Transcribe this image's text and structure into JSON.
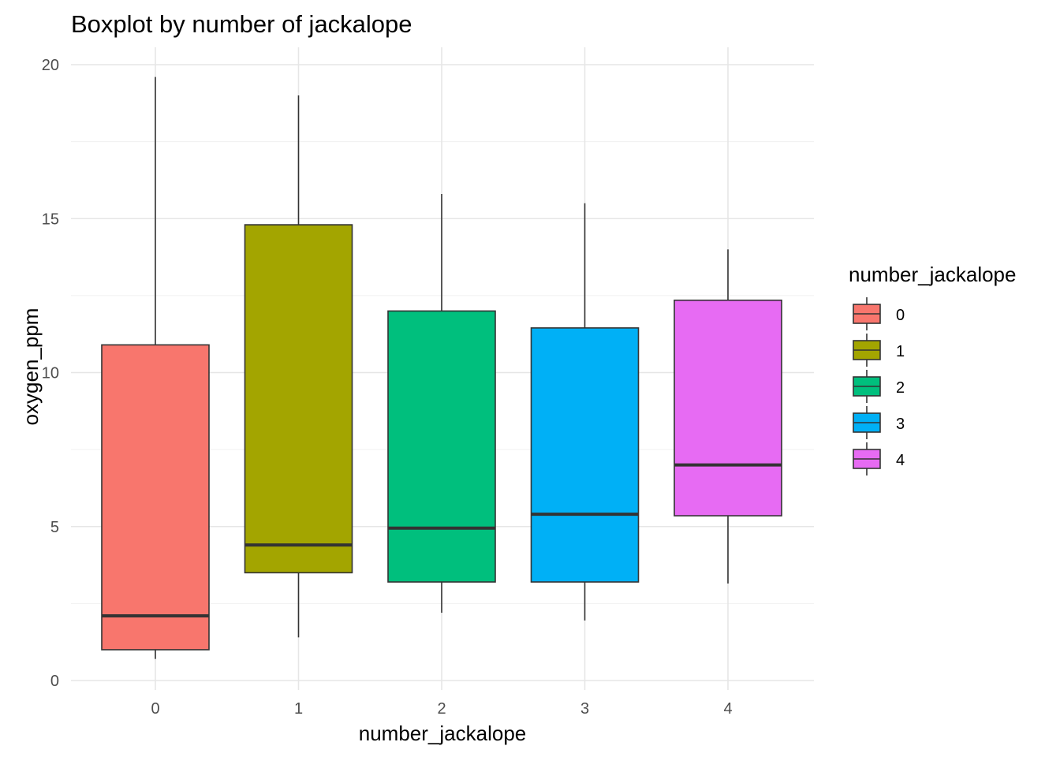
{
  "chart_data": {
    "type": "boxplot",
    "title": "Boxplot by number of jackalope",
    "xlabel": "number_jackalope",
    "ylabel": "oxygen_ppm",
    "categories": [
      "0",
      "1",
      "2",
      "3",
      "4"
    ],
    "ylim": [
      0,
      20
    ],
    "y_ticks": [
      0,
      5,
      10,
      15,
      20
    ],
    "y_tick_labels": [
      "0",
      "5",
      "10",
      "15",
      "20"
    ],
    "grid": true,
    "legend": {
      "title": "number_jackalope",
      "position": "right",
      "entries": [
        "0",
        "1",
        "2",
        "3",
        "4"
      ]
    },
    "boxes": [
      {
        "category": "0",
        "min": 0.7,
        "q1": 1.0,
        "median": 2.1,
        "q3": 10.9,
        "max": 19.6,
        "color": "#F8766D"
      },
      {
        "category": "1",
        "min": 1.4,
        "q1": 3.5,
        "median": 4.4,
        "q3": 14.8,
        "max": 19.0,
        "color": "#A3A500"
      },
      {
        "category": "2",
        "min": 2.2,
        "q1": 3.2,
        "median": 4.95,
        "q3": 12.0,
        "max": 15.8,
        "color": "#00BF7D"
      },
      {
        "category": "3",
        "min": 1.95,
        "q1": 3.2,
        "median": 5.4,
        "q3": 11.45,
        "max": 15.5,
        "color": "#00B0F6"
      },
      {
        "category": "4",
        "min": 3.15,
        "q1": 5.35,
        "median": 7.0,
        "q3": 12.35,
        "max": 14.0,
        "color": "#E76BF3"
      }
    ]
  }
}
